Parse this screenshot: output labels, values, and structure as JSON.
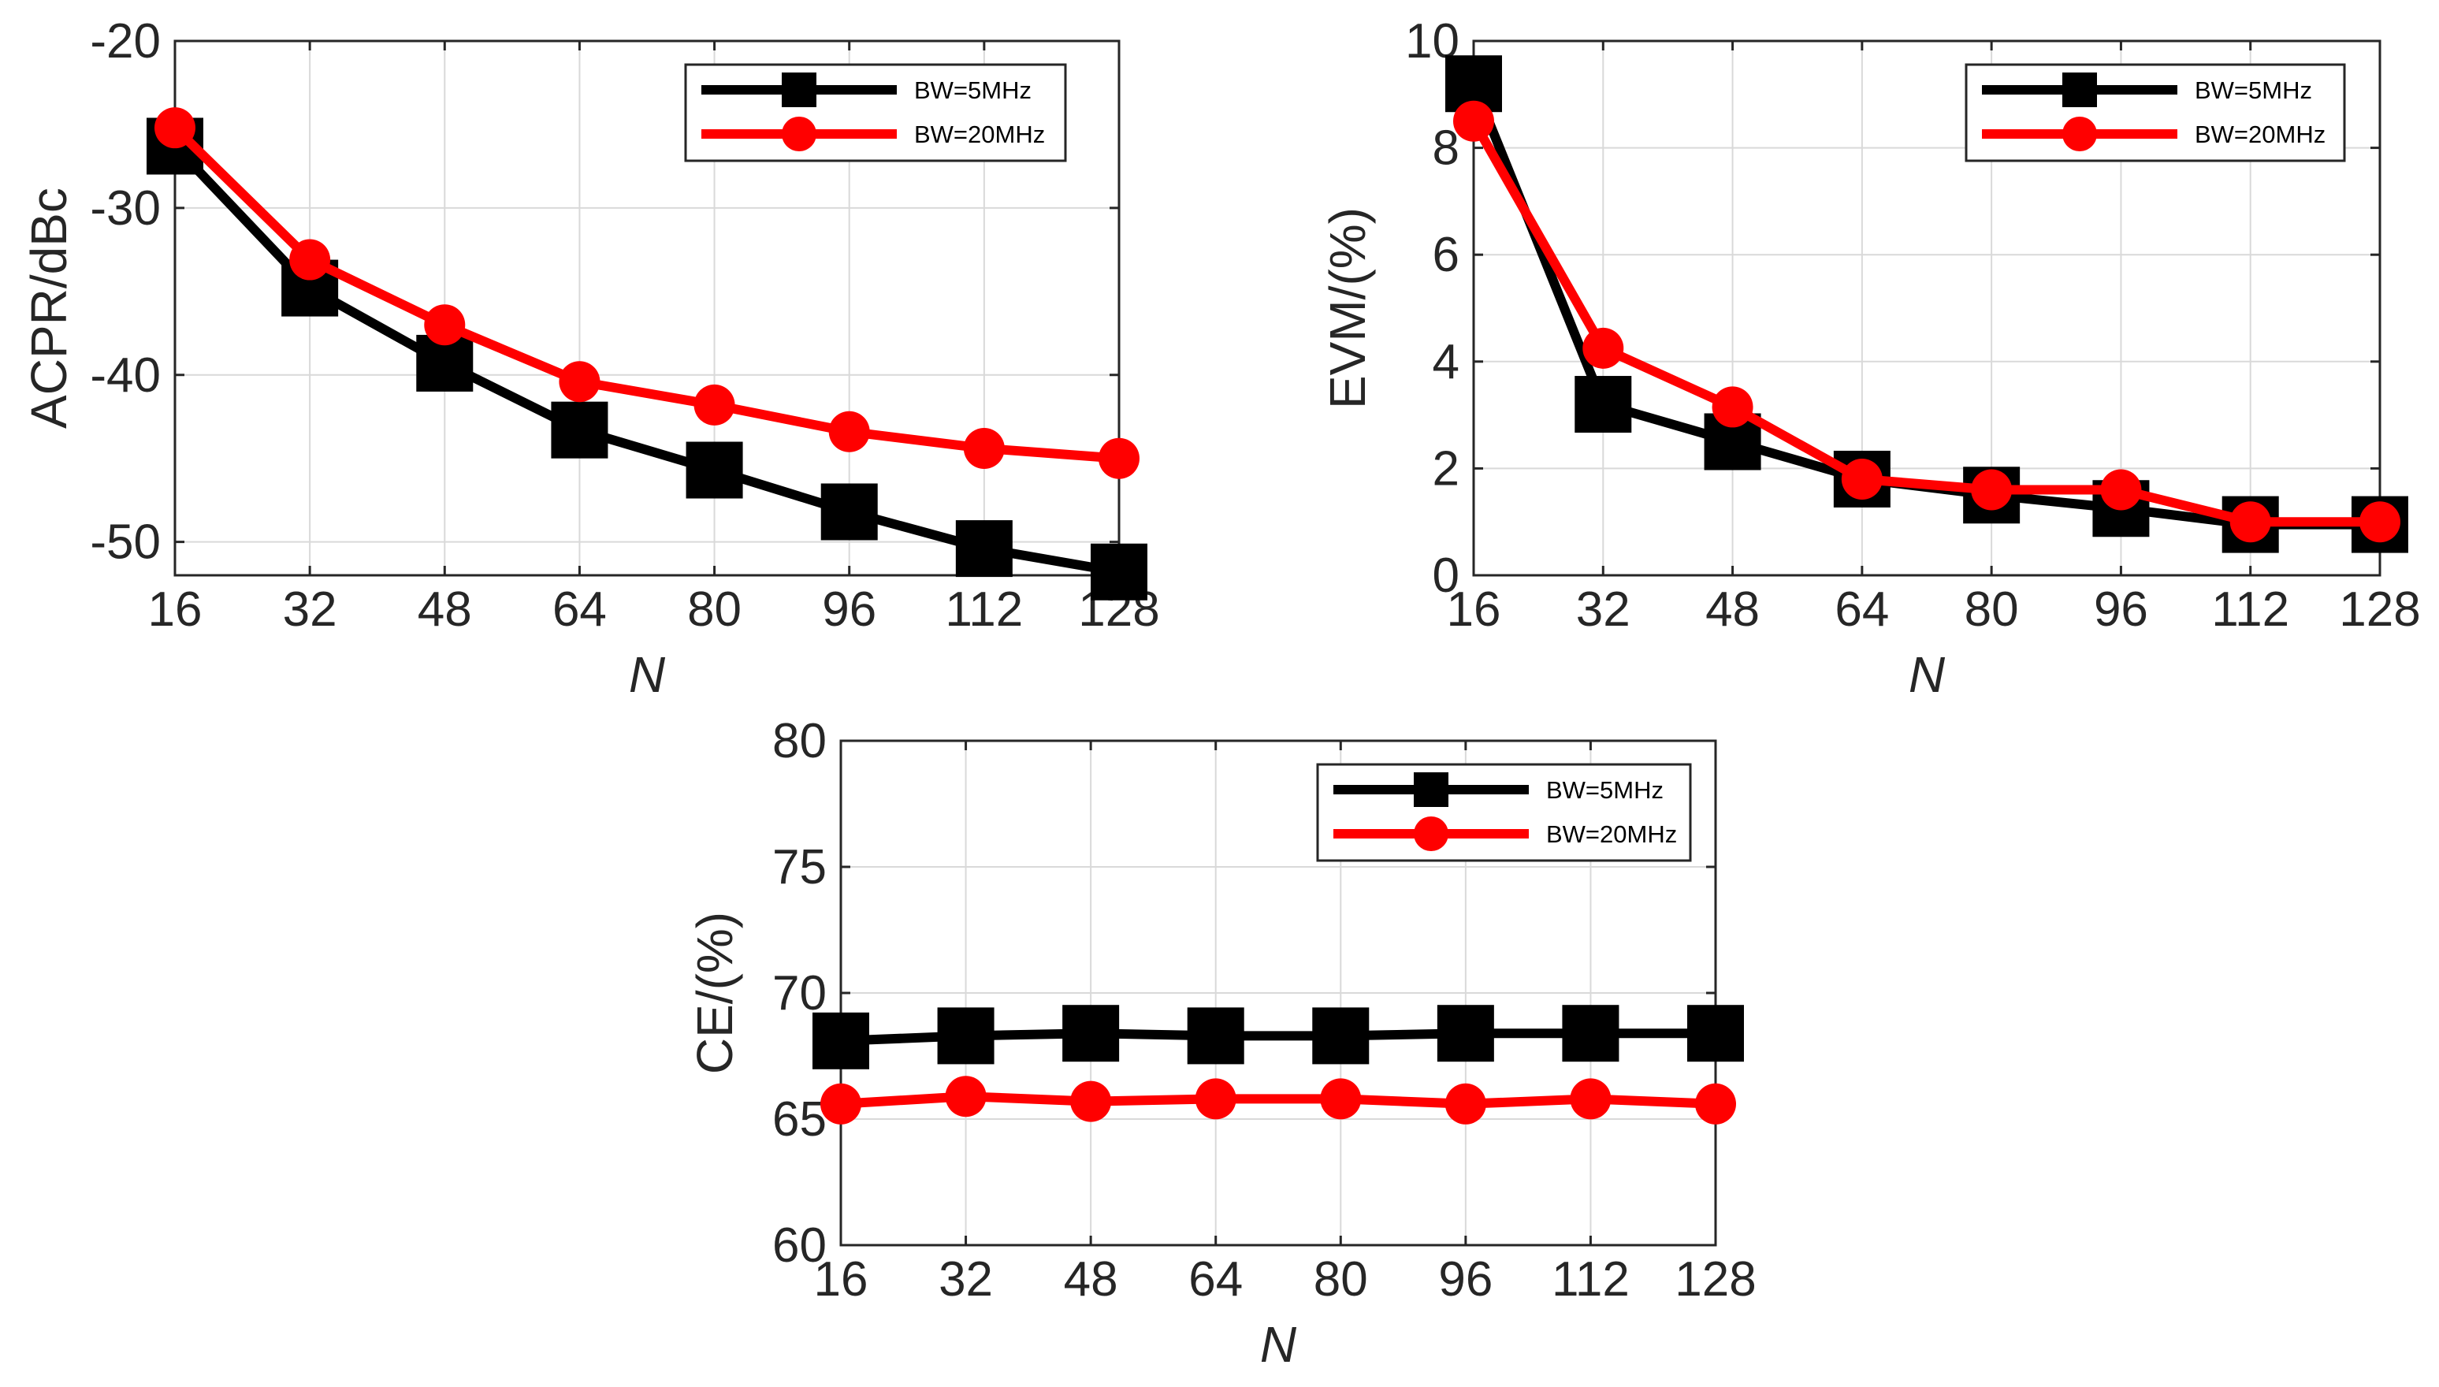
{
  "colors": {
    "series_5mhz": "#000000",
    "series_20mhz": "#ff0000",
    "grid": "#d9d9d9",
    "axes": "#262626"
  },
  "chart_data": [
    {
      "id": "acpr",
      "type": "line",
      "title": "",
      "xlabel": "N",
      "ylabel": "ACPR/dBc",
      "x": [
        16,
        32,
        48,
        64,
        80,
        96,
        112,
        128
      ],
      "x_tick_labels": [
        "16",
        "32",
        "48",
        "64",
        "80",
        "96",
        "112",
        "128"
      ],
      "xlim": [
        16,
        128
      ],
      "ylim": [
        -52,
        -20
      ],
      "y_ticks": [
        -50,
        -40,
        -30,
        -20
      ],
      "y_tick_labels": [
        "-50",
        "-40",
        "-30",
        "-20"
      ],
      "grid": true,
      "legend_position": "top-right",
      "series": [
        {
          "name": "BW=5MHz",
          "marker": "square",
          "color": "#000000",
          "values": [
            -26.3,
            -34.8,
            -39.3,
            -43.3,
            -45.7,
            -48.2,
            -50.4,
            -51.8
          ]
        },
        {
          "name": "BW=20MHz",
          "marker": "circle",
          "color": "#ff0000",
          "values": [
            -25.2,
            -33.1,
            -37.0,
            -40.4,
            -41.8,
            -43.4,
            -44.4,
            -45.0
          ]
        }
      ]
    },
    {
      "id": "evm",
      "type": "line",
      "title": "",
      "xlabel": "N",
      "ylabel": "EVM/(%)",
      "x": [
        16,
        32,
        48,
        64,
        80,
        96,
        112,
        128
      ],
      "x_tick_labels": [
        "16",
        "32",
        "48",
        "64",
        "80",
        "96",
        "112",
        "128"
      ],
      "xlim": [
        16,
        128
      ],
      "ylim": [
        0,
        10
      ],
      "y_ticks": [
        0,
        2,
        4,
        6,
        8,
        10
      ],
      "y_tick_labels": [
        "0",
        "2",
        "4",
        "6",
        "8",
        "10"
      ],
      "grid": true,
      "legend_position": "top-right",
      "series": [
        {
          "name": "BW=5MHz",
          "marker": "square",
          "color": "#000000",
          "values": [
            9.2,
            3.2,
            2.5,
            1.8,
            1.5,
            1.25,
            0.95,
            0.95
          ]
        },
        {
          "name": "BW=20MHz",
          "marker": "circle",
          "color": "#ff0000",
          "values": [
            8.5,
            4.25,
            3.15,
            1.8,
            1.6,
            1.6,
            1.0,
            1.0
          ]
        }
      ]
    },
    {
      "id": "ce",
      "type": "line",
      "title": "",
      "xlabel": "N",
      "ylabel": "CE/(%)",
      "x": [
        16,
        32,
        48,
        64,
        80,
        96,
        112,
        128
      ],
      "x_tick_labels": [
        "16",
        "32",
        "48",
        "64",
        "80",
        "96",
        "112",
        "128"
      ],
      "xlim": [
        16,
        128
      ],
      "ylim": [
        60,
        80
      ],
      "y_ticks": [
        60,
        65,
        70,
        75,
        80
      ],
      "y_tick_labels": [
        "60",
        "65",
        "70",
        "75",
        "80"
      ],
      "grid": true,
      "legend_position": "top-right",
      "series": [
        {
          "name": "BW=5MHz",
          "marker": "square",
          "color": "#000000",
          "values": [
            68.1,
            68.3,
            68.4,
            68.3,
            68.3,
            68.4,
            68.4,
            68.4
          ]
        },
        {
          "name": "BW=20MHz",
          "marker": "circle",
          "color": "#ff0000",
          "values": [
            65.6,
            65.9,
            65.7,
            65.8,
            65.8,
            65.6,
            65.8,
            65.6
          ]
        }
      ]
    }
  ]
}
